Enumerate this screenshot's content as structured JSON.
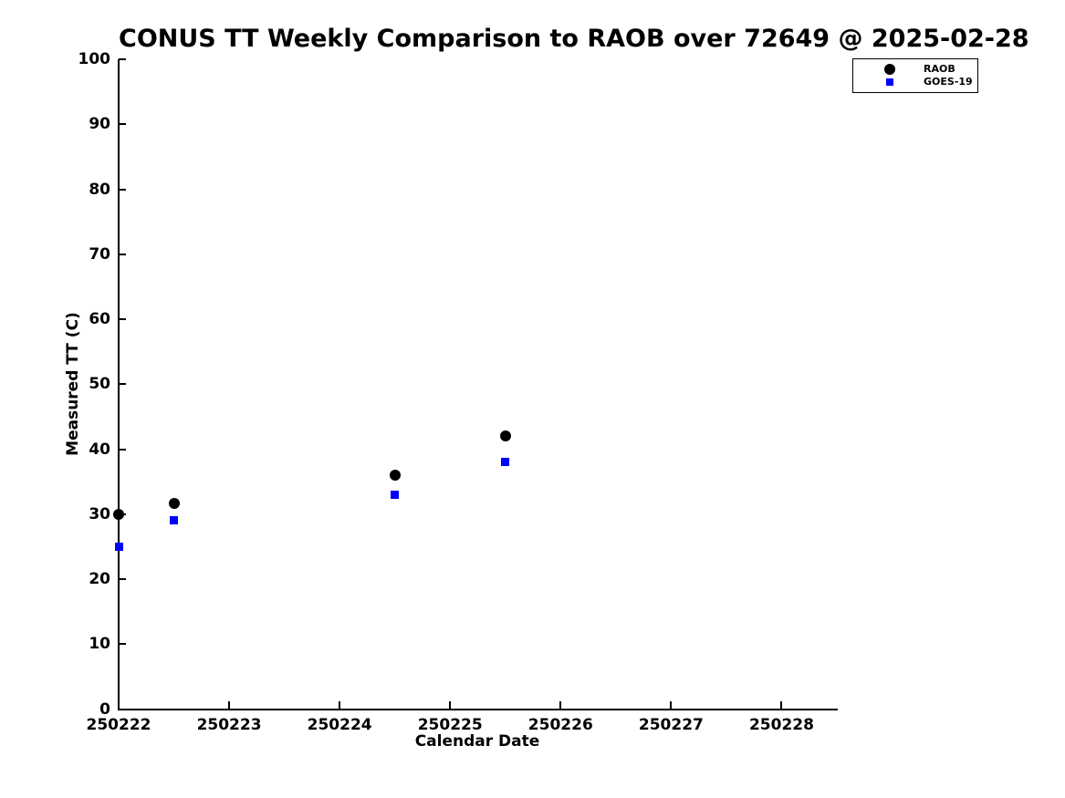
{
  "colors": {
    "background": "#ffffff",
    "axis": "#000000",
    "text": "#000000",
    "raob": "#000000",
    "goes19": "#0000ff"
  },
  "chart_data": {
    "type": "scatter",
    "title": "CONUS TT Weekly Comparison to RAOB over 72649 @ 2025-02-28",
    "xlabel": "Calendar Date",
    "ylabel": "Measured TT (C)",
    "xlim": [
      250222,
      250228.5
    ],
    "ylim": [
      0,
      100
    ],
    "xticks": [
      250222,
      250223,
      250224,
      250225,
      250226,
      250227,
      250228
    ],
    "yticks": [
      0,
      10,
      20,
      30,
      40,
      50,
      60,
      70,
      80,
      90,
      100
    ],
    "grid": false,
    "legend_position": "top-right-outside",
    "series": [
      {
        "name": "RAOB",
        "marker": "circle",
        "color": "#000000",
        "points": [
          {
            "x": 250222.0,
            "y": 30.0
          },
          {
            "x": 250222.5,
            "y": 31.6
          },
          {
            "x": 250224.5,
            "y": 36.0
          },
          {
            "x": 250225.5,
            "y": 42.1
          }
        ]
      },
      {
        "name": "GOES-19",
        "marker": "square",
        "color": "#0000ff",
        "points": [
          {
            "x": 250222.0,
            "y": 25.0
          },
          {
            "x": 250222.5,
            "y": 29.0
          },
          {
            "x": 250224.5,
            "y": 33.0
          },
          {
            "x": 250225.5,
            "y": 38.0
          }
        ]
      }
    ]
  }
}
